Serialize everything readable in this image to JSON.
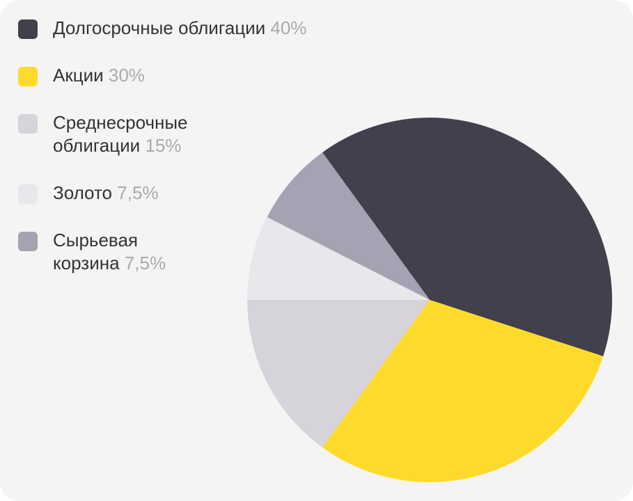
{
  "chart_data": {
    "type": "pie",
    "categories": [
      "Долгосрочные облигации",
      "Акции",
      "Среднесрочные облигации",
      "Золото",
      "Сырьевая корзина"
    ],
    "values": [
      40,
      30,
      15,
      7.5,
      7.5
    ],
    "value_labels": [
      "40%",
      "30%",
      "15%",
      "7,5%",
      "7,5%"
    ],
    "colors": [
      "#41404d",
      "#fedb2a",
      "#d6d3da",
      "#e7e7ec",
      "#a4a3b3"
    ]
  }
}
